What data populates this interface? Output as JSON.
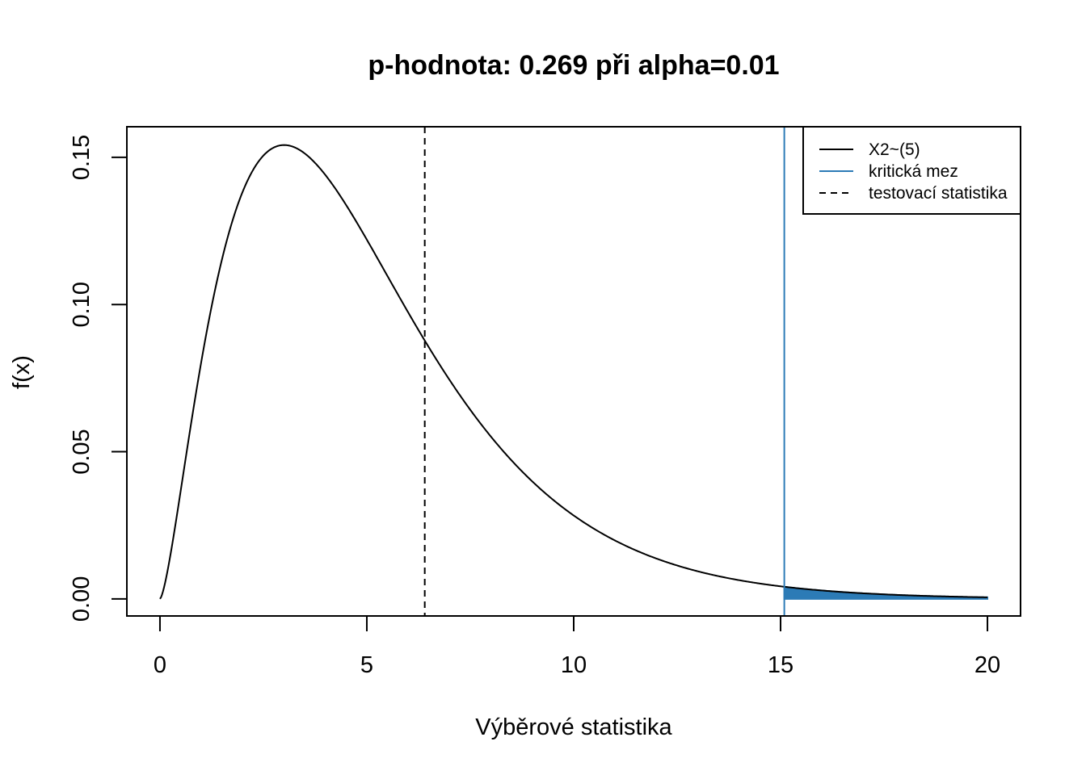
{
  "chart_data": {
    "type": "line",
    "title": "p-hodnota: 0.269 při alpha=0.01",
    "xlabel": "Výběrové statistika",
    "ylabel": "f(x)",
    "xlim": [
      -0.8,
      20.8
    ],
    "ylim": [
      -0.0058,
      0.1604
    ],
    "x_ticks": [
      0,
      5,
      10,
      15,
      20
    ],
    "x_tick_labels": [
      "0",
      "5",
      "10",
      "15",
      "20"
    ],
    "y_ticks": [
      0.0,
      0.05,
      0.1,
      0.15
    ],
    "y_tick_labels": [
      "0.00",
      "0.05",
      "0.10",
      "0.15"
    ],
    "grid": false,
    "legend_position": "top-right",
    "distribution": {
      "name": "chi-squared",
      "df": 5,
      "x_range": [
        0,
        20
      ]
    },
    "series": [
      {
        "name": "X2~(5)",
        "kind": "density-curve",
        "color": "#000000",
        "dash": "solid",
        "x": [
          0,
          0.5,
          1,
          1.5,
          2,
          2.5,
          3,
          3.5,
          4,
          4.5,
          5,
          5.5,
          6,
          6.5,
          7,
          7.5,
          8,
          8.5,
          9,
          9.5,
          10,
          11,
          12,
          13,
          14,
          15,
          16,
          17,
          18,
          19,
          20
        ],
        "y": [
          0,
          0.0366,
          0.0807,
          0.1151,
          0.1384,
          0.1508,
          0.1542,
          0.1507,
          0.1465,
          0.1382,
          0.1282,
          0.1172,
          0.1062,
          0.095,
          0.0841,
          0.0739,
          0.0646,
          0.056,
          0.0483,
          0.0414,
          0.0354,
          0.0256,
          0.0182,
          0.0129,
          0.009,
          0.0062,
          0.0043,
          0.0029,
          0.002,
          0.0013,
          0.0009
        ]
      },
      {
        "name": "kritická mez",
        "kind": "vertical-line",
        "color": "#2c7bb6",
        "dash": "solid",
        "x": 15.09
      },
      {
        "name": "testovací statistika",
        "kind": "vertical-line",
        "color": "#000000",
        "dash": "dashed",
        "x": 6.4
      }
    ],
    "shaded_region": {
      "from": 15.09,
      "to": 20,
      "color": "#2c7bb6"
    }
  }
}
